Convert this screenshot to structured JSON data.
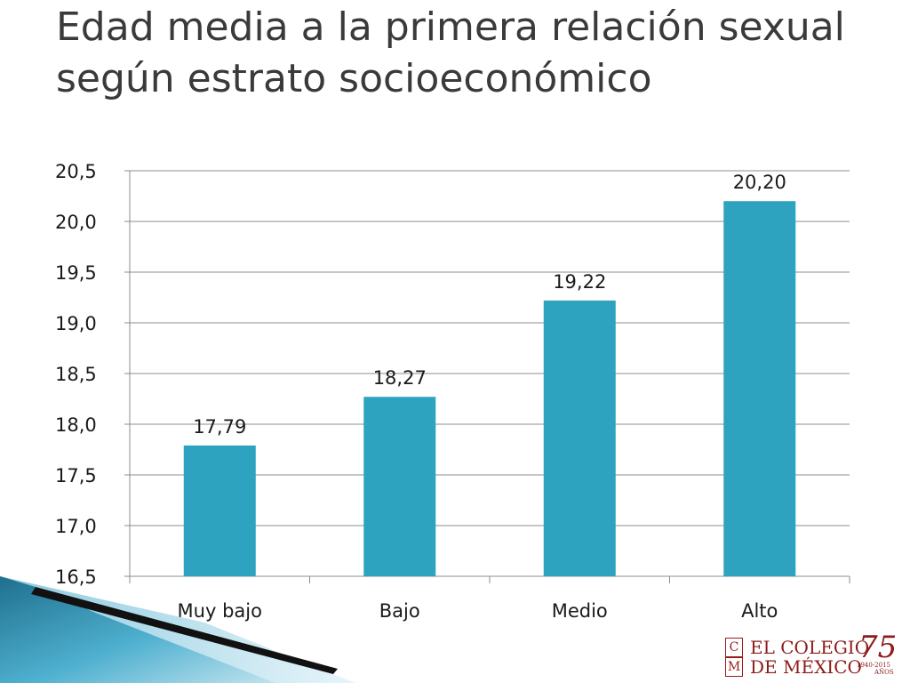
{
  "slide": {
    "title": "Edad media a la primera relación sexual según estrato socioeconómico"
  },
  "chart_data": {
    "type": "bar",
    "title": "",
    "xlabel": "",
    "ylabel": "",
    "categories": [
      "Muy bajo",
      "Bajo",
      "Medio",
      "Alto"
    ],
    "values": [
      17.79,
      18.27,
      19.22,
      20.2
    ],
    "value_labels": [
      "17,79",
      "18,27",
      "19,22",
      "20,20"
    ],
    "ylim": [
      16.5,
      20.5
    ],
    "yticks": [
      16.5,
      17.0,
      17.5,
      18.0,
      18.5,
      19.0,
      19.5,
      20.0,
      20.5
    ],
    "ytick_labels": [
      "16,5",
      "17,0",
      "17,5",
      "18,0",
      "18,5",
      "19,0",
      "19,5",
      "20,0",
      "20,5"
    ],
    "grid": true,
    "legend": "none",
    "bar_color": "#2ea3bf"
  },
  "logo": {
    "box_top": "C",
    "box_bottom": "M",
    "line1": "EL COLEGIO",
    "line2": "DE MÉXICO",
    "anniversary": "75",
    "years": "1940-2015",
    "anos": "AÑOS",
    "color": "#8e1a1a"
  }
}
